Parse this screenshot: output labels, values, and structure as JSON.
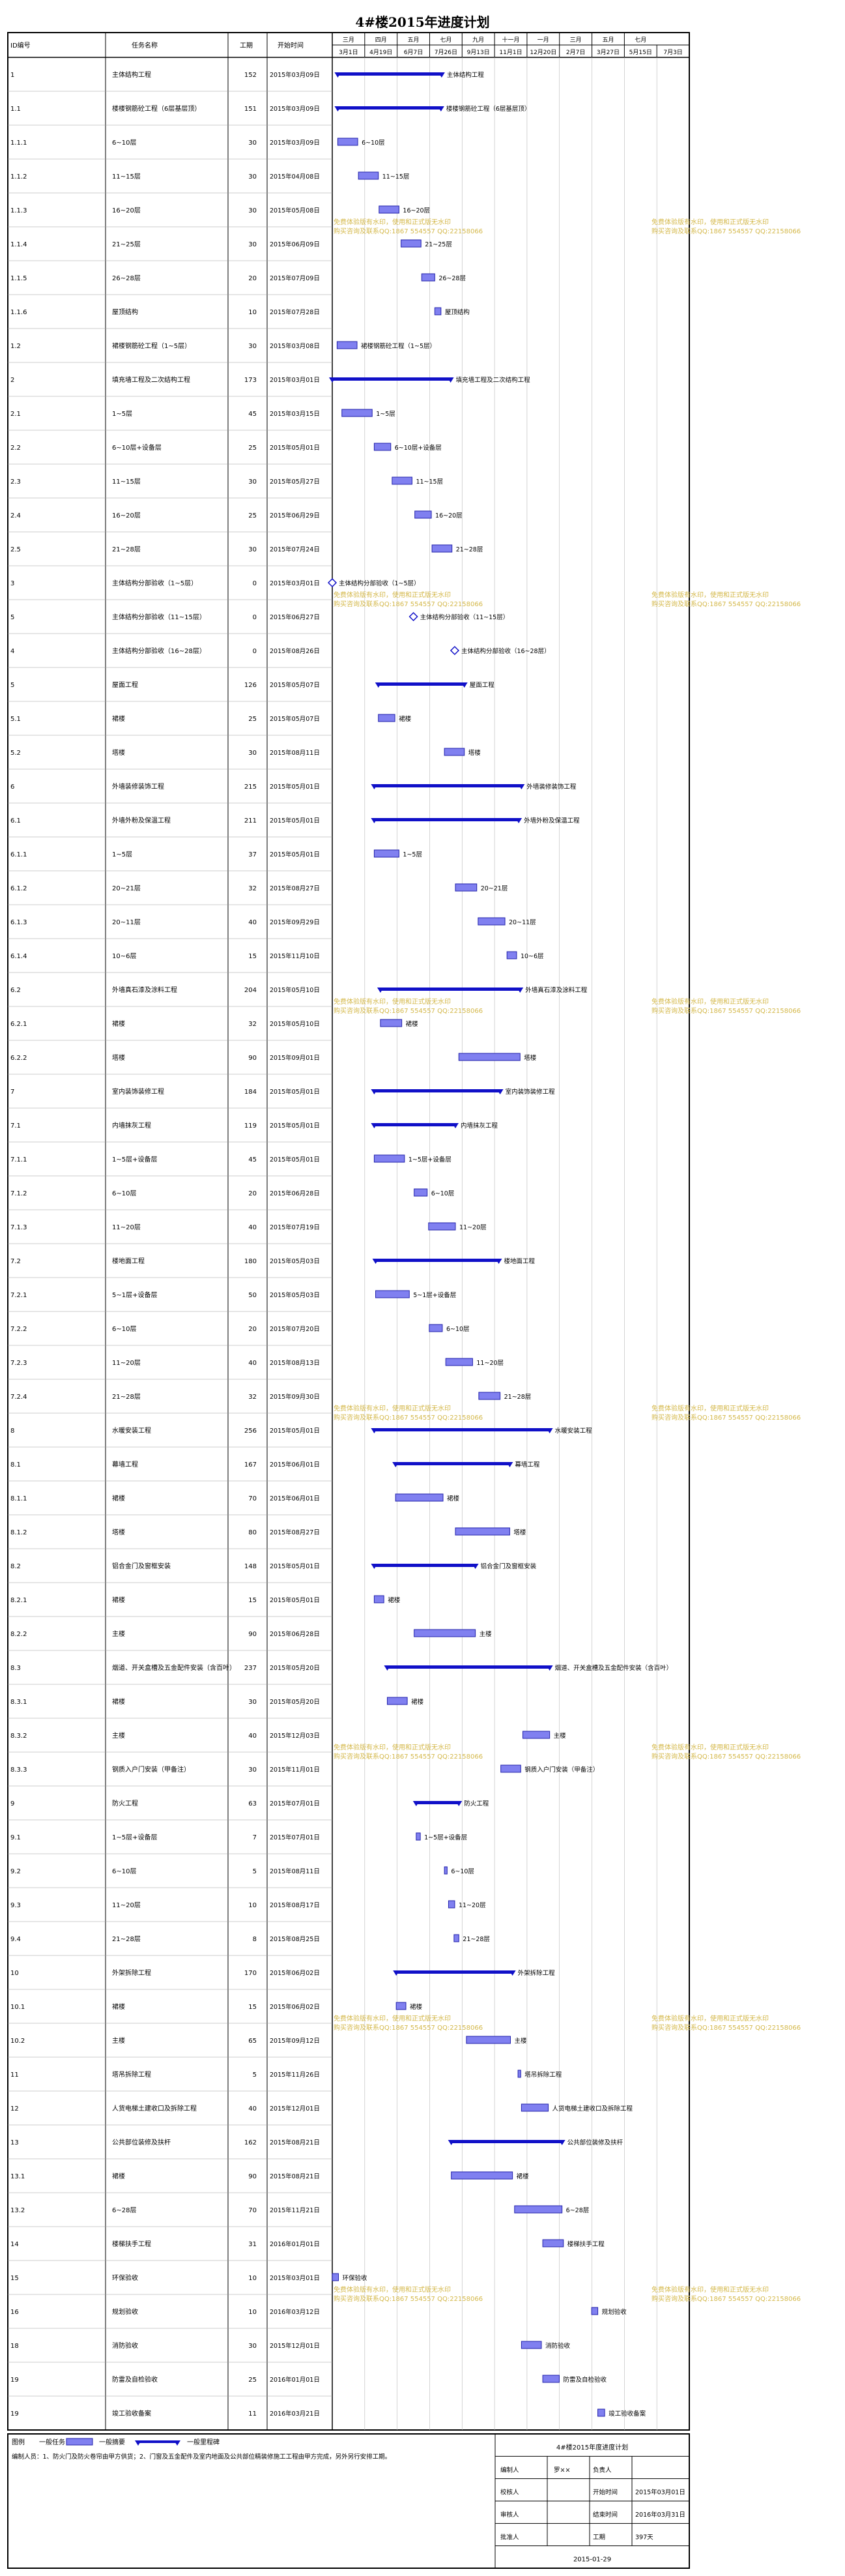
{
  "title": "4#楼2015年进度计划",
  "header": {
    "id": "ID编号",
    "name": "任务名称",
    "duration": "工期",
    "start": "开始时间"
  },
  "timescale": {
    "months": [
      "三月",
      "四月",
      "五月",
      "七月",
      "九月",
      "十一月",
      "一月",
      "三月",
      "五月",
      "七月"
    ],
    "weeks": [
      "3月1日",
      "4月19日",
      "6月7日",
      "7月26日",
      "9月13日",
      "11月1日",
      "12月20日",
      "2月7日",
      "3月27日",
      "5月15日",
      "7月3日"
    ]
  },
  "watermark": {
    "line1": "免费体验版有水印，使用和正式版无水印",
    "line2": "购买咨询及联系QQ:1867 554557 QQ:22158066"
  },
  "chart_data": {
    "type": "gantt",
    "title": "4#楼2015年进度计划",
    "x_range": [
      "2015-03-01",
      "2016-08-01"
    ],
    "tasks": [
      {
        "id": "1",
        "name": "主体结构工程",
        "duration": "152",
        "start": "2015年03月09日",
        "s": "2015-03-09",
        "e": "2015-08-07",
        "kind": "summary",
        "label": "主体结构工程"
      },
      {
        "id": "1.1",
        "name": "楼楼钢筋砼工程（6层基层顶）",
        "duration": "151",
        "start": "2015年03月09日",
        "s": "2015-03-09",
        "e": "2015-08-06",
        "kind": "summary",
        "label": "楼楼钢筋砼工程（6层基层顶）"
      },
      {
        "id": "1.1.1",
        "name": "6~10层",
        "duration": "30",
        "start": "2015年03月09日",
        "s": "2015-03-09",
        "e": "2015-04-07",
        "kind": "task",
        "label": "6~10层"
      },
      {
        "id": "1.1.2",
        "name": "11~15层",
        "duration": "30",
        "start": "2015年04月08日",
        "s": "2015-04-08",
        "e": "2015-05-07",
        "kind": "task",
        "label": "11~15层"
      },
      {
        "id": "1.1.3",
        "name": "16~20层",
        "duration": "30",
        "start": "2015年05月08日",
        "s": "2015-05-08",
        "e": "2015-06-06",
        "kind": "task",
        "label": "16~20层"
      },
      {
        "id": "1.1.4",
        "name": "21~25层",
        "duration": "30",
        "start": "2015年06月09日",
        "s": "2015-06-09",
        "e": "2015-07-08",
        "kind": "task",
        "label": "21~25层"
      },
      {
        "id": "1.1.5",
        "name": "26~28层",
        "duration": "20",
        "start": "2015年07月09日",
        "s": "2015-07-09",
        "e": "2015-07-28",
        "kind": "task",
        "label": "26~28层"
      },
      {
        "id": "1.1.6",
        "name": "屋顶结构",
        "duration": "10",
        "start": "2015年07月28日",
        "s": "2015-07-28",
        "e": "2015-08-06",
        "kind": "task",
        "label": "屋顶结构"
      },
      {
        "id": "1.2",
        "name": "裙楼钢筋砼工程（1~5层）",
        "duration": "30",
        "start": "2015年03月08日",
        "s": "2015-03-08",
        "e": "2015-04-06",
        "kind": "task",
        "label": "裙楼钢筋砼工程（1~5层）"
      },
      {
        "id": "2",
        "name": "填充墙工程及二次结构工程",
        "duration": "173",
        "start": "2015年03月01日",
        "s": "2015-03-01",
        "e": "2015-08-20",
        "kind": "summary",
        "label": "填充墙工程及二次结构工程"
      },
      {
        "id": "2.1",
        "name": "1~5层",
        "duration": "45",
        "start": "2015年03月15日",
        "s": "2015-03-15",
        "e": "2015-04-28",
        "kind": "task",
        "label": "1~5层"
      },
      {
        "id": "2.2",
        "name": "6~10层+设备层",
        "duration": "25",
        "start": "2015年05月01日",
        "s": "2015-05-01",
        "e": "2015-05-25",
        "kind": "task",
        "label": "6~10层+设备层"
      },
      {
        "id": "2.3",
        "name": "11~15层",
        "duration": "30",
        "start": "2015年05月27日",
        "s": "2015-05-27",
        "e": "2015-06-25",
        "kind": "task",
        "label": "11~15层"
      },
      {
        "id": "2.4",
        "name": "16~20层",
        "duration": "25",
        "start": "2015年06月29日",
        "s": "2015-06-29",
        "e": "2015-07-23",
        "kind": "task",
        "label": "16~20层"
      },
      {
        "id": "2.5",
        "name": "21~28层",
        "duration": "30",
        "start": "2015年07月24日",
        "s": "2015-07-24",
        "e": "2015-08-22",
        "kind": "task",
        "label": "21~28层"
      },
      {
        "id": "3",
        "name": "主体结构分部验收（1~5层）",
        "duration": "0",
        "start": "2015年03月01日",
        "s": "2015-03-01",
        "e": "2015-03-01",
        "kind": "milestone",
        "label": "主体结构分部验收（1~5层）"
      },
      {
        "id": "5",
        "name": "主体结构分部验收（11~15层）",
        "duration": "0",
        "start": "2015年06月27日",
        "s": "2015-06-27",
        "e": "2015-06-27",
        "kind": "milestone",
        "label": "主体结构分部验收（11~15层）"
      },
      {
        "id": "4",
        "name": "主体结构分部验收（16~28层）",
        "duration": "0",
        "start": "2015年08月26日",
        "s": "2015-08-26",
        "e": "2015-08-26",
        "kind": "milestone",
        "label": "主体结构分部验收（16~28层）"
      },
      {
        "id": "5",
        "name": "屋面工程",
        "duration": "126",
        "start": "2015年05月07日",
        "s": "2015-05-07",
        "e": "2015-09-09",
        "kind": "summary",
        "label": "屋面工程"
      },
      {
        "id": "5.1",
        "name": "裙楼",
        "duration": "25",
        "start": "2015年05月07日",
        "s": "2015-05-07",
        "e": "2015-05-31",
        "kind": "task",
        "label": "裙楼"
      },
      {
        "id": "5.2",
        "name": "塔楼",
        "duration": "30",
        "start": "2015年08月11日",
        "s": "2015-08-11",
        "e": "2015-09-09",
        "kind": "task",
        "label": "塔楼"
      },
      {
        "id": "6",
        "name": "外墙装修装饰工程",
        "duration": "215",
        "start": "2015年05月01日",
        "s": "2015-05-01",
        "e": "2015-12-01",
        "kind": "summary",
        "label": "外墙装修装饰工程"
      },
      {
        "id": "6.1",
        "name": "外墙外粉及保温工程",
        "duration": "211",
        "start": "2015年05月01日",
        "s": "2015-05-01",
        "e": "2015-11-27",
        "kind": "summary",
        "label": "外墙外粉及保温工程"
      },
      {
        "id": "6.1.1",
        "name": "1~5层",
        "duration": "37",
        "start": "2015年05月01日",
        "s": "2015-05-01",
        "e": "2015-06-06",
        "kind": "task",
        "label": "1~5层"
      },
      {
        "id": "6.1.2",
        "name": "20~21层",
        "duration": "32",
        "start": "2015年08月27日",
        "s": "2015-08-27",
        "e": "2015-09-27",
        "kind": "task",
        "label": "20~21层"
      },
      {
        "id": "6.1.3",
        "name": "20~11层",
        "duration": "40",
        "start": "2015年09月29日",
        "s": "2015-09-29",
        "e": "2015-11-07",
        "kind": "task",
        "label": "20~11层"
      },
      {
        "id": "6.1.4",
        "name": "10~6层",
        "duration": "15",
        "start": "2015年11月10日",
        "s": "2015-11-10",
        "e": "2015-11-24",
        "kind": "task",
        "label": "10~6层"
      },
      {
        "id": "6.2",
        "name": "外墙真石漆及涂料工程",
        "duration": "204",
        "start": "2015年05月10日",
        "s": "2015-05-10",
        "e": "2015-11-29",
        "kind": "summary",
        "label": "外墙真石漆及涂料工程"
      },
      {
        "id": "6.2.1",
        "name": "裙楼",
        "duration": "32",
        "start": "2015年05月10日",
        "s": "2015-05-10",
        "e": "2015-06-10",
        "kind": "task",
        "label": "裙楼"
      },
      {
        "id": "6.2.2",
        "name": "塔楼",
        "duration": "90",
        "start": "2015年09月01日",
        "s": "2015-09-01",
        "e": "2015-11-29",
        "kind": "task",
        "label": "塔楼"
      },
      {
        "id": "7",
        "name": "室内装饰装修工程",
        "duration": "184",
        "start": "2015年05月01日",
        "s": "2015-05-01",
        "e": "2015-10-31",
        "kind": "summary",
        "label": "室内装饰装修工程"
      },
      {
        "id": "7.1",
        "name": "内墙抹灰工程",
        "duration": "119",
        "start": "2015年05月01日",
        "s": "2015-05-01",
        "e": "2015-08-27",
        "kind": "summary",
        "label": "内墙抹灰工程"
      },
      {
        "id": "7.1.1",
        "name": "1~5层+设备层",
        "duration": "45",
        "start": "2015年05月01日",
        "s": "2015-05-01",
        "e": "2015-06-14",
        "kind": "task",
        "label": "1~5层+设备层"
      },
      {
        "id": "7.1.2",
        "name": "6~10层",
        "duration": "20",
        "start": "2015年06月28日",
        "s": "2015-06-28",
        "e": "2015-07-17",
        "kind": "task",
        "label": "6~10层"
      },
      {
        "id": "7.1.3",
        "name": "11~20层",
        "duration": "40",
        "start": "2015年07月19日",
        "s": "2015-07-19",
        "e": "2015-08-27",
        "kind": "task",
        "label": "11~20层"
      },
      {
        "id": "7.2",
        "name": "楼地面工程",
        "duration": "180",
        "start": "2015年05月03日",
        "s": "2015-05-03",
        "e": "2015-10-29",
        "kind": "summary",
        "label": "楼地面工程"
      },
      {
        "id": "7.2.1",
        "name": "5~1层+设备层",
        "duration": "50",
        "start": "2015年05月03日",
        "s": "2015-05-03",
        "e": "2015-06-21",
        "kind": "task",
        "label": "5~1层+设备层"
      },
      {
        "id": "7.2.2",
        "name": "6~10层",
        "duration": "20",
        "start": "2015年07月20日",
        "s": "2015-07-20",
        "e": "2015-08-08",
        "kind": "task",
        "label": "6~10层"
      },
      {
        "id": "7.2.3",
        "name": "11~20层",
        "duration": "40",
        "start": "2015年08月13日",
        "s": "2015-08-13",
        "e": "2015-09-21",
        "kind": "task",
        "label": "11~20层"
      },
      {
        "id": "7.2.4",
        "name": "21~28层",
        "duration": "32",
        "start": "2015年09月30日",
        "s": "2015-09-30",
        "e": "2015-10-31",
        "kind": "task",
        "label": "21~28层"
      },
      {
        "id": "8",
        "name": "水暖安装工程",
        "duration": "256",
        "start": "2015年05月01日",
        "s": "2015-05-01",
        "e": "2016-01-11",
        "kind": "summary",
        "label": "水暖安装工程"
      },
      {
        "id": "8.1",
        "name": "幕墙工程",
        "duration": "167",
        "start": "2015年06月01日",
        "s": "2015-06-01",
        "e": "2015-11-14",
        "kind": "summary",
        "label": "幕墙工程"
      },
      {
        "id": "8.1.1",
        "name": "裙楼",
        "duration": "70",
        "start": "2015年06月01日",
        "s": "2015-06-01",
        "e": "2015-08-09",
        "kind": "task",
        "label": "裙楼"
      },
      {
        "id": "8.1.2",
        "name": "塔楼",
        "duration": "80",
        "start": "2015年08月27日",
        "s": "2015-08-27",
        "e": "2015-11-14",
        "kind": "task",
        "label": "塔楼"
      },
      {
        "id": "8.2",
        "name": "铝合金门及窗框安装",
        "duration": "148",
        "start": "2015年05月01日",
        "s": "2015-05-01",
        "e": "2015-09-25",
        "kind": "summary",
        "label": "铝合金门及窗框安装"
      },
      {
        "id": "8.2.1",
        "name": "裙楼",
        "duration": "15",
        "start": "2015年05月01日",
        "s": "2015-05-01",
        "e": "2015-05-15",
        "kind": "task",
        "label": "裙楼"
      },
      {
        "id": "8.2.2",
        "name": "主楼",
        "duration": "90",
        "start": "2015年06月28日",
        "s": "2015-06-28",
        "e": "2015-09-25",
        "kind": "task",
        "label": "主楼"
      },
      {
        "id": "8.3",
        "name": "烟道、开关盒槽及五金配件安装（含百叶）",
        "duration": "237",
        "start": "2015年05月20日",
        "s": "2015-05-20",
        "e": "2016-01-11",
        "kind": "summary",
        "label": "烟道、开关盒槽及五金配件安装（含百叶）"
      },
      {
        "id": "8.3.1",
        "name": "裙楼",
        "duration": "30",
        "start": "2015年05月20日",
        "s": "2015-05-20",
        "e": "2015-06-18",
        "kind": "task",
        "label": "裙楼"
      },
      {
        "id": "8.3.2",
        "name": "主楼",
        "duration": "40",
        "start": "2015年12月03日",
        "s": "2015-12-03",
        "e": "2016-01-11",
        "kind": "task",
        "label": "主楼"
      },
      {
        "id": "8.3.3",
        "name": "钢质入户门安装（甲备注）",
        "duration": "30",
        "start": "2015年11月01日",
        "s": "2015-11-01",
        "e": "2015-11-30",
        "kind": "task",
        "label": "钢质入户门安装（甲备注）"
      },
      {
        "id": "9",
        "name": "防火工程",
        "duration": "63",
        "start": "2015年07月01日",
        "s": "2015-07-01",
        "e": "2015-09-01",
        "kind": "summary",
        "label": "防火工程"
      },
      {
        "id": "9.1",
        "name": "1~5层+设备层",
        "duration": "7",
        "start": "2015年07月01日",
        "s": "2015-07-01",
        "e": "2015-07-07",
        "kind": "task",
        "label": "1~5层+设备层"
      },
      {
        "id": "9.2",
        "name": "6~10层",
        "duration": "5",
        "start": "2015年08月11日",
        "s": "2015-08-11",
        "e": "2015-08-15",
        "kind": "task",
        "label": "6~10层"
      },
      {
        "id": "9.3",
        "name": "11~20层",
        "duration": "10",
        "start": "2015年08月17日",
        "s": "2015-08-17",
        "e": "2015-08-26",
        "kind": "task",
        "label": "11~20层"
      },
      {
        "id": "9.4",
        "name": "21~28层",
        "duration": "8",
        "start": "2015年08月25日",
        "s": "2015-08-25",
        "e": "2015-09-01",
        "kind": "task",
        "label": "21~28层"
      },
      {
        "id": "10",
        "name": "外架拆除工程",
        "duration": "170",
        "start": "2015年06月02日",
        "s": "2015-06-02",
        "e": "2015-11-18",
        "kind": "summary",
        "label": "外架拆除工程"
      },
      {
        "id": "10.1",
        "name": "裙楼",
        "duration": "15",
        "start": "2015年06月02日",
        "s": "2015-06-02",
        "e": "2015-06-16",
        "kind": "task",
        "label": "裙楼"
      },
      {
        "id": "10.2",
        "name": "主楼",
        "duration": "65",
        "start": "2015年09月12日",
        "s": "2015-09-12",
        "e": "2015-11-15",
        "kind": "task",
        "label": "主楼"
      },
      {
        "id": "11",
        "name": "塔吊拆除工程",
        "duration": "5",
        "start": "2015年11月26日",
        "s": "2015-11-26",
        "e": "2015-11-30",
        "kind": "task",
        "label": "塔吊拆除工程"
      },
      {
        "id": "12",
        "name": "人货电梯土建收口及拆除工程",
        "duration": "40",
        "start": "2015年12月01日",
        "s": "2015-12-01",
        "e": "2016-01-09",
        "kind": "task",
        "label": "人货电梯土建收口及拆除工程"
      },
      {
        "id": "13",
        "name": "公共部位装修及扶杆",
        "duration": "162",
        "start": "2015年08月21日",
        "s": "2015-08-21",
        "e": "2016-01-29",
        "kind": "summary",
        "label": "公共部位装修及扶杆"
      },
      {
        "id": "13.1",
        "name": "裙楼",
        "duration": "90",
        "start": "2015年08月21日",
        "s": "2015-08-21",
        "e": "2015-11-18",
        "kind": "task",
        "label": "裙楼"
      },
      {
        "id": "13.2",
        "name": "6~28层",
        "duration": "70",
        "start": "2015年11月21日",
        "s": "2015-11-21",
        "e": "2016-01-29",
        "kind": "task",
        "label": "6~28层"
      },
      {
        "id": "14",
        "name": "楼梯扶手工程",
        "duration": "31",
        "start": "2016年01月01日",
        "s": "2016-01-01",
        "e": "2016-01-31",
        "kind": "task",
        "label": "楼梯扶手工程"
      },
      {
        "id": "15",
        "name": "环保验收",
        "duration": "10",
        "start": "2015年03月01日",
        "s": "2015-03-01",
        "e": "2015-03-10",
        "kind": "task",
        "label": "环保验收"
      },
      {
        "id": "16",
        "name": "规划验收",
        "duration": "10",
        "start": "2016年03月12日",
        "s": "2016-03-12",
        "e": "2016-03-21",
        "kind": "task",
        "label": "规划验收"
      },
      {
        "id": "18",
        "name": "消防验收",
        "duration": "30",
        "start": "2015年12月01日",
        "s": "2015-12-01",
        "e": "2015-12-30",
        "kind": "task",
        "label": "消防验收"
      },
      {
        "id": "19",
        "name": "防雷及自检验收",
        "duration": "25",
        "start": "2016年01月01日",
        "s": "2016-01-01",
        "e": "2016-01-25",
        "kind": "task",
        "label": "防雷及自检验收"
      },
      {
        "id": "19",
        "name": "竣工验收备案",
        "duration": "11",
        "start": "2016年03月21日",
        "s": "2016-03-21",
        "e": "2016-03-31",
        "kind": "task",
        "label": "竣工验收备案"
      }
    ]
  },
  "footer": {
    "legend_title": "图例",
    "legend_task": "一般任务",
    "legend_critical": "一般摘要",
    "legend_summary": "一般里程碑",
    "note": "编制人员：1、防火门及防火卷帘由甲方供货；2、门窗及五金配件及室内地面及公共部位精装修施工工程由甲方完成，另外另行安排工期。",
    "project_name": "4#楼2015年度进度计划",
    "info": [
      {
        "label": "编制人",
        "value": "罗××",
        "label2": "负责人",
        "value2": ""
      },
      {
        "label": "校核人",
        "value": "",
        "label2": "开始时间",
        "value2": "2015年03月01日"
      },
      {
        "label": "审核人",
        "value": "",
        "label2": "结束时间",
        "value2": "2016年03月31日"
      },
      {
        "label": "批准人",
        "value": "",
        "label2": "工期",
        "value2": "397天"
      }
    ],
    "date": "2015-01-29"
  }
}
